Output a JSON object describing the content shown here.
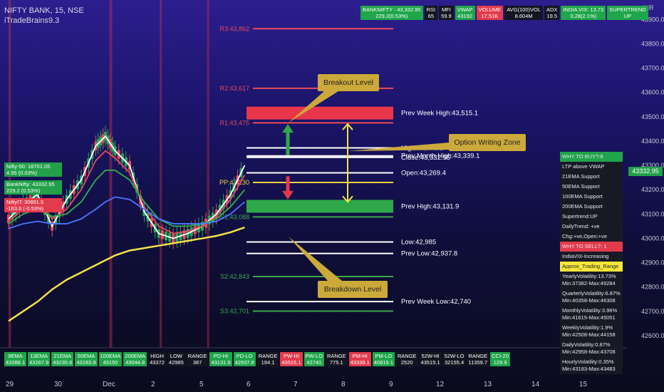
{
  "header": {
    "symbol_line": "NIFTY BANK, 15, NSE",
    "indicator_line": "iTradeBrains9.3"
  },
  "top_table": [
    {
      "l1": "BANKNIFTY : 43,332.95",
      "l2": "229.2(0.53%)",
      "c": "g"
    },
    {
      "l1": "RSI",
      "l2": "65",
      "c": "d"
    },
    {
      "l1": "MFI",
      "l2": "59.9",
      "c": "d"
    },
    {
      "l1": "VWAP",
      "l2": "43192",
      "c": "g"
    },
    {
      "l1": "VOLUME",
      "l2": "17.51K",
      "c": "r"
    },
    {
      "l1": "AVG(100)VOL",
      "l2": "8.604M",
      "c": "d"
    },
    {
      "l1": "ADX",
      "l2": "19.5",
      "c": "d"
    },
    {
      "l1": "INDIA VIX: 13.73",
      "l2": "0.28(2.1%)",
      "c": "g"
    },
    {
      "l1": "SUPERTREND",
      "l2": "UP",
      "c": "g"
    }
  ],
  "axis_unit": "INR",
  "last_price": "43332.95",
  "left_legend": [
    {
      "text": "Nifty-50: 18701.05\n4.95 (0.03%)",
      "c": "#22a04a"
    },
    {
      "text": "BankNifty: 43332.95\n229.2 (0.53%)",
      "c": "#22a04a"
    },
    {
      "text": "NiftyIT: 30891.5\n-163.6 (-0.53%)",
      "c": "#e23b4c"
    }
  ],
  "side_panel": [
    {
      "t": "WHY TO BUY?:8",
      "c": "g"
    },
    {
      "t": "LTP above VWAP",
      "c": "d"
    },
    {
      "t": "21EMA Support",
      "c": "d"
    },
    {
      "t": "50EMA Support",
      "c": "d"
    },
    {
      "t": "100EMA Support",
      "c": "d"
    },
    {
      "t": "200EMA Support",
      "c": "d"
    },
    {
      "t": "Supertrend:UP",
      "c": "d"
    },
    {
      "t": "DailyTrend: +ve",
      "c": "d"
    },
    {
      "t": "Chg:+ve,Open:+ve",
      "c": "d"
    },
    {
      "t": "WHY TO SELL?: 1",
      "c": "r"
    },
    {
      "t": "IndiaVIX-Increasing",
      "c": "d"
    },
    {
      "t": "Approx_Trading_Range",
      "c": "y"
    },
    {
      "t": "YearlyVolatility:13.73%\nMin:37382-Max:49284",
      "c": "d"
    },
    {
      "t": "QuarterlyVolatility:6.87%\nMin:40358-Max:46308",
      "c": "d"
    },
    {
      "t": "MonthlyVolatility:3.96%\nMin:41615-Max:45051",
      "c": "d"
    },
    {
      "t": "WeeklyVolatility:1.9%\nMin:42508-Max:44158",
      "c": "d"
    },
    {
      "t": "DailyVolatility:0.87%\nMin:42958-Max:43708",
      "c": "d"
    },
    {
      "t": "HourlyVolatility:0.35%\nMin:43183-Max:43483",
      "c": "d"
    }
  ],
  "bottom_table": [
    {
      "l1": "9EMA",
      "l2": "43288.1",
      "c": "g"
    },
    {
      "l1": "13EMA",
      "l2": "43267.9",
      "c": "g"
    },
    {
      "l1": "21EMA",
      "l2": "43235.6",
      "c": "g"
    },
    {
      "l1": "50EMA",
      "l2": "43183.9",
      "c": "g"
    },
    {
      "l1": "100EMA",
      "l2": "43150",
      "c": "g"
    },
    {
      "l1": "200EMA",
      "l2": "43044.8",
      "c": "g"
    },
    {
      "l1": "HIGH",
      "l2": "43372",
      "c": "d"
    },
    {
      "l1": "LOW",
      "l2": "42985",
      "c": "d"
    },
    {
      "l1": "RANGE",
      "l2": "387",
      "c": "d"
    },
    {
      "l1": "PD-HI",
      "l2": "43131.9",
      "c": "g"
    },
    {
      "l1": "PD-LO",
      "l2": "42937.8",
      "c": "g"
    },
    {
      "l1": "RANGE",
      "l2": "194.1",
      "c": "d"
    },
    {
      "l1": "PW-HI",
      "l2": "43515.1",
      "c": "r"
    },
    {
      "l1": "PW-LO",
      "l2": "42740",
      "c": "g"
    },
    {
      "l1": "RANGE",
      "l2": "775.1",
      "c": "d"
    },
    {
      "l1": "PM-HI",
      "l2": "43339.1",
      "c": "r"
    },
    {
      "l1": "PM-LO",
      "l2": "40819.1",
      "c": "g"
    },
    {
      "l1": "RANGE",
      "l2": "2520",
      "c": "d"
    },
    {
      "l1": "52W-HI",
      "l2": "43515.1",
      "c": "d"
    },
    {
      "l1": "52W-LO",
      "l2": "32155.4",
      "c": "d"
    },
    {
      "l1": "RANGE",
      "l2": "11359.7",
      "c": "d"
    },
    {
      "l1": "CCI-20",
      "l2": "129.9",
      "c": "g"
    }
  ],
  "callouts": {
    "breakout": "Breakout Level",
    "option": "Option Writing Zone",
    "breakdown": "Breakdown Level"
  },
  "x_labels": [
    {
      "v": 0,
      "t": "29"
    },
    {
      "v": 1,
      "t": "30"
    },
    {
      "v": 2,
      "t": "Dec"
    },
    {
      "v": 3,
      "t": "2"
    },
    {
      "v": 4,
      "t": "5"
    },
    {
      "v": 5,
      "t": "6"
    },
    {
      "v": 6,
      "t": "7"
    },
    {
      "v": 7,
      "t": "8"
    },
    {
      "v": 8,
      "t": "9"
    },
    {
      "v": 9,
      "t": "12"
    },
    {
      "v": 10,
      "t": "13"
    },
    {
      "v": 11,
      "t": "14"
    },
    {
      "v": 12,
      "t": "15"
    }
  ],
  "chart_data": {
    "type": "line",
    "title": "NIFTY BANK, 15, NSE",
    "y_range": [
      42550,
      43980
    ],
    "y_ticks": [
      42600,
      42700,
      42800,
      42900,
      43000,
      43100,
      43200,
      43300,
      43400,
      43500,
      43600,
      43700,
      43800,
      43900
    ],
    "y_tick_labels": [
      "42600.00",
      "42700.00",
      "42800.00",
      "42900.00",
      "43000.00",
      "43100.00",
      "43200.00",
      "43300.00",
      "43400.00",
      "43500.00",
      "43600.00",
      "43700.00",
      "43800.00",
      "43900.00"
    ],
    "pivot_levels": [
      {
        "label": "R3:43,862",
        "value": 43862,
        "color": "#e84a5a"
      },
      {
        "label": "R2:43,617",
        "value": 43617,
        "color": "#e84a5a"
      },
      {
        "label": "R1:43,475",
        "value": 43475,
        "color": "#e84a5a"
      },
      {
        "label": "PP:43,230",
        "value": 43230,
        "color": "#f0d240"
      },
      {
        "label": "S1:43,088",
        "value": 43088,
        "color": "#3ca84a"
      },
      {
        "label": "S2:42,843",
        "value": 42843,
        "color": "#3ca84a"
      },
      {
        "label": "S3:42,701",
        "value": 42701,
        "color": "#3ca84a"
      }
    ],
    "key_levels": [
      {
        "label": "Prev Week High:43,515.1",
        "value": 43515.1,
        "kind": "zone-red"
      },
      {
        "label": "High:43,372.1",
        "value": 43372.1,
        "kind": "white"
      },
      {
        "label": "Prev Month High:43,339.1",
        "value": 43339.1,
        "kind": "white"
      },
      {
        "label": "Close:43,332.95",
        "value": 43332.95,
        "kind": "white"
      },
      {
        "label": "Open:43,269.4",
        "value": 43269.4,
        "kind": "white"
      },
      {
        "label": "Prev High:43,131.9",
        "value": 43131.9,
        "kind": "zone-green"
      },
      {
        "label": "Low:42,985",
        "value": 42985,
        "kind": "white"
      },
      {
        "label": "Prev Low:42,937.8",
        "value": 42937.8,
        "kind": "white"
      },
      {
        "label": "Prev Week Low:42,740",
        "value": 42740,
        "kind": "white"
      }
    ],
    "series": [
      {
        "color": "#ffffff",
        "x": [
          0,
          0.3,
          0.6,
          0.9,
          1.2,
          1.5,
          1.8,
          2.0,
          2.2,
          2.5,
          2.8,
          3.1,
          3.4,
          3.7,
          4.0,
          4.3,
          4.6,
          4.9
        ],
        "values": [
          43080,
          43140,
          43180,
          43050,
          43160,
          43240,
          43380,
          43420,
          43360,
          43300,
          43110,
          43020,
          43000,
          43020,
          43050,
          43100,
          43180,
          43300
        ]
      },
      {
        "color": "#e84a5a",
        "x": [
          0,
          0.3,
          0.6,
          0.9,
          1.2,
          1.5,
          1.8,
          2.0,
          2.2,
          2.5,
          2.8,
          3.1,
          3.4,
          3.7,
          4.0,
          4.3,
          4.6,
          4.9
        ],
        "values": [
          43070,
          43120,
          43150,
          43080,
          43120,
          43200,
          43320,
          43360,
          43330,
          43270,
          43130,
          43050,
          43020,
          43030,
          43050,
          43090,
          43160,
          43260
        ]
      },
      {
        "color": "#33b04a",
        "x": [
          0,
          0.3,
          0.6,
          0.9,
          1.2,
          1.5,
          1.8,
          2.0,
          2.2,
          2.5,
          2.8,
          3.1,
          3.4,
          3.7,
          4.0,
          4.3,
          4.6,
          4.9
        ],
        "values": [
          43060,
          43100,
          43120,
          43090,
          43100,
          43150,
          43240,
          43280,
          43280,
          43240,
          43150,
          43080,
          43050,
          43050,
          43060,
          43080,
          43130,
          43200
        ]
      },
      {
        "color": "#4a78ff",
        "x": [
          0,
          0.3,
          0.6,
          0.9,
          1.2,
          1.5,
          1.8,
          2.0,
          2.2,
          2.5,
          2.8,
          3.1,
          3.4,
          3.7,
          4.0,
          4.3,
          4.6,
          4.9
        ],
        "values": [
          43040,
          43060,
          43070,
          43060,
          43060,
          43080,
          43120,
          43150,
          43170,
          43160,
          43120,
          43080,
          43060,
          43060,
          43060,
          43070,
          43100,
          43150
        ]
      },
      {
        "color": "#f5e14a",
        "x": [
          0,
          0.3,
          0.6,
          0.9,
          1.2,
          1.5,
          1.8,
          2.0,
          2.2,
          2.5,
          2.8,
          3.1,
          3.4,
          3.7,
          4.0,
          4.3,
          4.6,
          4.9
        ],
        "values": [
          42660,
          42700,
          42740,
          42790,
          42830,
          42860,
          42890,
          42910,
          42930,
          42950,
          42960,
          42970,
          42980,
          42990,
          43000,
          43010,
          43025,
          43045
        ]
      }
    ]
  }
}
